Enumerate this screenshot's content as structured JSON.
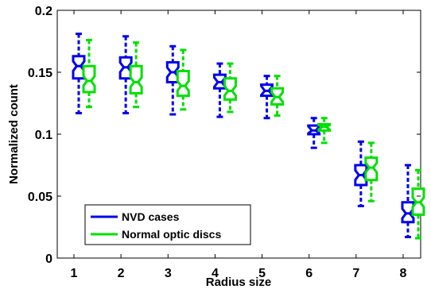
{
  "chart_data": {
    "type": "boxplot",
    "title": "",
    "xlabel": "Radius size",
    "ylabel": "Normalized count",
    "ylim": [
      0,
      0.2
    ],
    "yticks": [
      0,
      0.05,
      0.1,
      0.15,
      0.2
    ],
    "ytick_labels": [
      "0",
      "0.05",
      "0.1",
      "0.15",
      "0.2"
    ],
    "categories": [
      "1",
      "2",
      "3",
      "4",
      "5",
      "6",
      "7",
      "8"
    ],
    "grid": false,
    "notched": true,
    "legend_position": "bottom-left",
    "series": [
      {
        "name": "NVD cases",
        "color": "#0000ee",
        "boxes": [
          {
            "whisker_low": 0.117,
            "q1": 0.145,
            "median": 0.155,
            "q3": 0.163,
            "whisker_high": 0.181
          },
          {
            "whisker_low": 0.117,
            "q1": 0.145,
            "median": 0.154,
            "q3": 0.162,
            "whisker_high": 0.179
          },
          {
            "whisker_low": 0.116,
            "q1": 0.142,
            "median": 0.15,
            "q3": 0.158,
            "whisker_high": 0.171
          },
          {
            "whisker_low": 0.114,
            "q1": 0.137,
            "median": 0.142,
            "q3": 0.148,
            "whisker_high": 0.157
          },
          {
            "whisker_low": 0.113,
            "q1": 0.131,
            "median": 0.135,
            "q3": 0.14,
            "whisker_high": 0.147
          },
          {
            "whisker_low": 0.089,
            "q1": 0.1,
            "median": 0.103,
            "q3": 0.107,
            "whisker_high": 0.113
          },
          {
            "whisker_low": 0.042,
            "q1": 0.059,
            "median": 0.067,
            "q3": 0.075,
            "whisker_high": 0.094
          },
          {
            "whisker_low": 0.017,
            "q1": 0.029,
            "median": 0.036,
            "q3": 0.045,
            "whisker_high": 0.075
          }
        ]
      },
      {
        "name": "Normal optic discs",
        "color": "#00e000",
        "boxes": [
          {
            "whisker_low": 0.122,
            "q1": 0.134,
            "median": 0.143,
            "q3": 0.155,
            "whisker_high": 0.176
          },
          {
            "whisker_low": 0.122,
            "q1": 0.133,
            "median": 0.142,
            "q3": 0.155,
            "whisker_high": 0.174
          },
          {
            "whisker_low": 0.12,
            "q1": 0.131,
            "median": 0.139,
            "q3": 0.151,
            "whisker_high": 0.168
          },
          {
            "whisker_low": 0.118,
            "q1": 0.128,
            "median": 0.135,
            "q3": 0.145,
            "whisker_high": 0.157
          },
          {
            "whisker_low": 0.115,
            "q1": 0.124,
            "median": 0.13,
            "q3": 0.137,
            "whisker_high": 0.147
          },
          {
            "whisker_low": 0.093,
            "q1": 0.103,
            "median": 0.106,
            "q3": 0.108,
            "whisker_high": 0.113
          },
          {
            "whisker_low": 0.046,
            "q1": 0.063,
            "median": 0.073,
            "q3": 0.081,
            "whisker_high": 0.093
          },
          {
            "whisker_low": 0.016,
            "q1": 0.035,
            "median": 0.045,
            "q3": 0.056,
            "whisker_high": 0.071
          }
        ]
      }
    ]
  }
}
